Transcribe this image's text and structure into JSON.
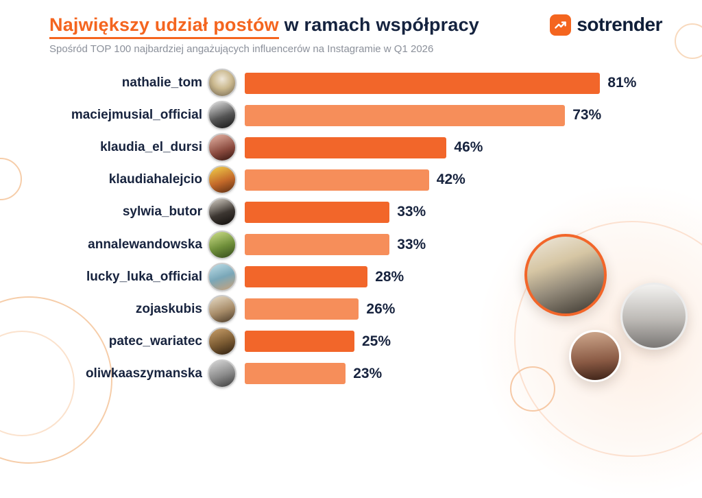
{
  "header": {
    "title_highlight": "Największy udział postów",
    "title_rest": " w ramach współpracy",
    "subtitle": "Spośród TOP 100 najbardziej angażujących influencerów na Instagramie w Q1 2026"
  },
  "logo": {
    "text": "sotrender",
    "icon": "trending-up-icon"
  },
  "colors": {
    "accent": "#f4651f",
    "bar_dark": "#f2662a",
    "bar_light": "#f68e5a",
    "navy": "#17233e",
    "subtitle_gray": "#8b909a"
  },
  "chart_data": {
    "type": "bar",
    "orientation": "horizontal",
    "title": "Największy udział postów w ramach współpracy",
    "subtitle": "Spośród TOP 100 najbardziej angażujących influencerów na Instagramie w Q1 2026",
    "categories": [
      "nathalie_tom",
      "maciejmusial_official",
      "klaudia_el_dursi",
      "klaudiahalejcio",
      "sylwia_butor",
      "annalewandowska",
      "lucky_luka_official",
      "zojaskubis",
      "patec_wariatec",
      "oliwkaaszymanska"
    ],
    "values": [
      81,
      73,
      46,
      42,
      33,
      33,
      28,
      26,
      25,
      23
    ],
    "value_suffix": "%",
    "xlim": [
      0,
      100
    ],
    "grid": false,
    "legend": false,
    "bar_color_pattern": [
      "#f2662a",
      "#f68e5a"
    ]
  }
}
